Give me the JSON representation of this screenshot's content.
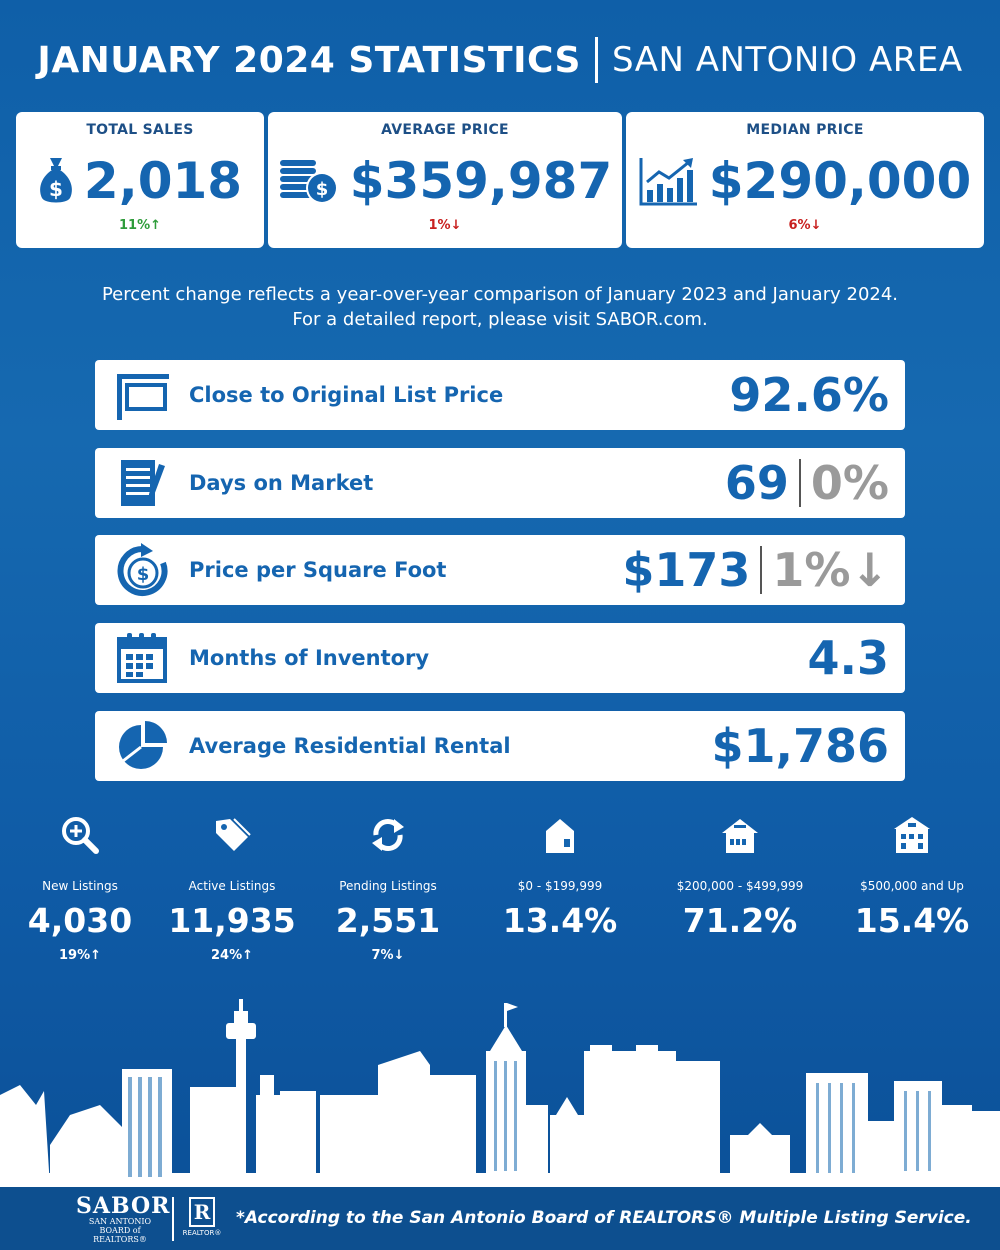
{
  "header": {
    "title": "JANUARY 2024 STATISTICS",
    "area": "SAN ANTONIO AREA"
  },
  "top_cards": [
    {
      "label": "TOTAL SALES",
      "value": "2,018",
      "change": "11%",
      "direction": "up",
      "icon": "money-bag-icon"
    },
    {
      "label": "AVERAGE PRICE",
      "value": "$359,987",
      "change": "1%",
      "direction": "down",
      "icon": "coin-stack-icon"
    },
    {
      "label": "MEDIAN PRICE",
      "value": "$290,000",
      "change": "6%",
      "direction": "down",
      "icon": "growth-chart-icon"
    }
  ],
  "note": {
    "line1": "Percent change reflects a year-over-year comparison of January 2023 and January 2024.",
    "line2": "For a detailed report, please visit SABOR.com."
  },
  "stats": [
    {
      "label": "Close to Original List Price",
      "value": "92.6%",
      "change": "",
      "icon": "sign-icon"
    },
    {
      "label": "Days on Market",
      "value": "69",
      "change": "0%",
      "icon": "notepad-icon"
    },
    {
      "label": "Price per Square Foot",
      "value": "$173",
      "change": "1%",
      "icon": "dollar-cycle-icon"
    },
    {
      "label": "Months of Inventory",
      "value": "4.3",
      "change": "",
      "icon": "calendar-icon"
    },
    {
      "label": "Average Residential Rental",
      "value": "$1,786",
      "change": "",
      "icon": "pie-chart-icon"
    }
  ],
  "listings": [
    {
      "label": "New Listings",
      "value": "4,030",
      "change": "19%",
      "direction": "up",
      "icon": "magnify-plus-icon"
    },
    {
      "label": "Active Listings",
      "value": "11,935",
      "change": "24%",
      "direction": "up",
      "icon": "tag-icon"
    },
    {
      "label": "Pending Listings",
      "value": "2,551",
      "change": "7%",
      "direction": "down",
      "icon": "refresh-arrows-icon"
    },
    {
      "label": "$0 - $199,999",
      "value": "13.4%",
      "change": "",
      "icon": "small-house-icon"
    },
    {
      "label": "$200,000 - $499,999",
      "value": "71.2%",
      "change": "",
      "icon": "medium-house-icon"
    },
    {
      "label": "$500,000 and Up",
      "value": "15.4%",
      "change": "",
      "icon": "large-house-icon"
    }
  ],
  "footer": {
    "logo_text": "SABOR",
    "logo_sub_1": "SAN ANTONIO",
    "logo_sub_2": "BOARD of REALTORS®",
    "realtor_mark": "R",
    "realtor_sub": "REALTOR®",
    "disclaimer": "*According to the San Antonio Board of REALTORS® Multiple Listing Service."
  },
  "colors": {
    "background": "#1669b0",
    "card": "#ffffff",
    "value_blue": "#1565b0",
    "up_green": "#2e9c3a",
    "down_red": "#c8201f",
    "muted_gray": "#9a9a9a"
  }
}
